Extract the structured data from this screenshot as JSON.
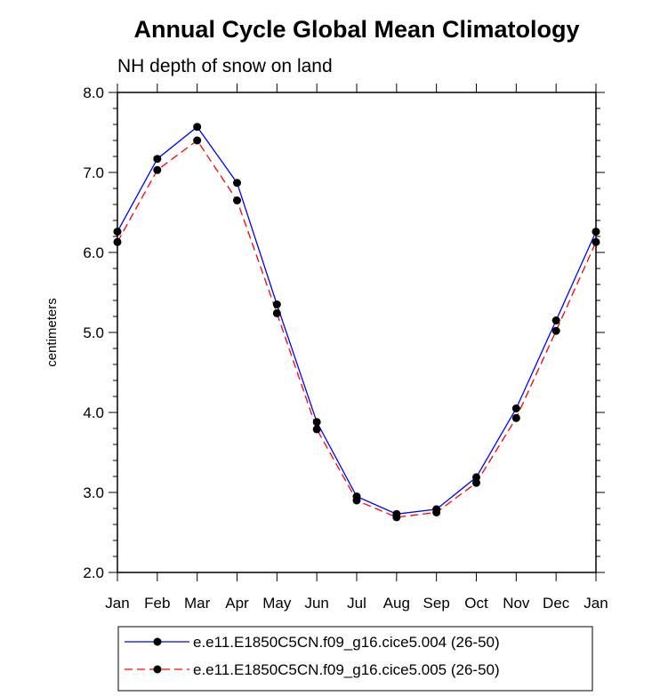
{
  "chart_data": {
    "type": "line",
    "title": "Annual Cycle Global Mean Climatology",
    "subtitle": "NH depth of snow on land",
    "xlabel": "",
    "ylabel": "centimeters",
    "categories": [
      "Jan",
      "Feb",
      "Mar",
      "Apr",
      "May",
      "Jun",
      "Jul",
      "Aug",
      "Sep",
      "Oct",
      "Nov",
      "Dec",
      "Jan"
    ],
    "ylim": [
      2.0,
      8.0
    ],
    "yticks": [
      "2.0",
      "3.0",
      "4.0",
      "5.0",
      "6.0",
      "7.0",
      "8.0"
    ],
    "grid": false,
    "series": [
      {
        "name": "e.e11.E1850C5CN.f09_g16.cice5.004 (26-50)",
        "color": "#0000ff",
        "dash": "solid",
        "values": [
          6.26,
          7.17,
          7.57,
          6.87,
          5.35,
          3.88,
          2.95,
          2.73,
          2.79,
          3.19,
          4.05,
          5.15,
          6.26
        ]
      },
      {
        "name": "e.e11.E1850C5CN.f09_g16.cice5.005 (26-50)",
        "color": "#ff0000",
        "dash": "dashed",
        "values": [
          6.13,
          7.03,
          7.4,
          6.65,
          5.24,
          3.79,
          2.9,
          2.69,
          2.75,
          3.12,
          3.93,
          5.02,
          6.13
        ]
      }
    ],
    "legend_position": "bottom"
  }
}
